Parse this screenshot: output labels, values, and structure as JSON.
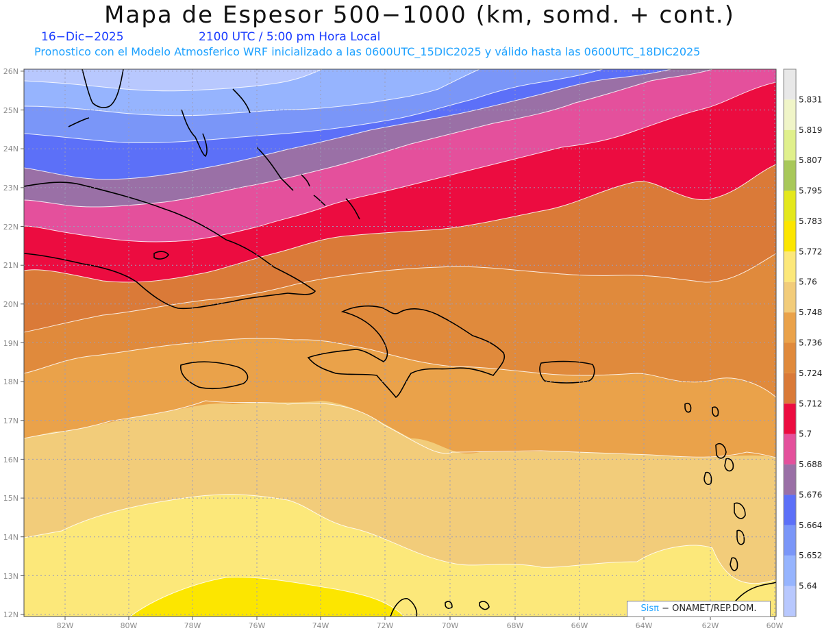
{
  "header": {
    "title": "Mapa de Espesor 500−1000 (km, somd. + cont.)",
    "date": "16−Dic−2025",
    "time": "2100 UTC / 5:00 pm Hora Local",
    "subtitle": "Pronostico con el Modelo Atmosferico WRF inicializado a las 0600UTC_15DIC2025 y válido hasta las  0600UTC_18DIC2025"
  },
  "map": {
    "lat_labels": [
      "26N",
      "25N",
      "24N",
      "23N",
      "22N",
      "21N",
      "20N",
      "19N",
      "18N",
      "17N",
      "16N",
      "15N",
      "14N",
      "13N",
      "12N"
    ],
    "lon_labels": [
      "82W",
      "80W",
      "78W",
      "76W",
      "74W",
      "72W",
      "70W",
      "68W",
      "66W",
      "64W",
      "62W",
      "60W"
    ],
    "lat_range": [
      12,
      26
    ],
    "lon_range": [
      -83.2,
      -60
    ],
    "grid": true
  },
  "colorbar": {
    "levels": [
      "5.831",
      "5.819",
      "5.807",
      "5.795",
      "5.783",
      "5.772",
      "5.76",
      "5.748",
      "5.736",
      "5.724",
      "5.712",
      "5.7",
      "5.688",
      "5.676",
      "5.664",
      "5.652",
      "5.64"
    ],
    "colors": [
      "#e8e8e8",
      "#f0f5c8",
      "#e0f08c",
      "#a8c85a",
      "#e4e81c",
      "#fce600",
      "#fce87a",
      "#f2cc7a",
      "#eaa24a",
      "#e08a3c",
      "#da7a38",
      "#ec0c40",
      "#e4509c",
      "#9a70a6",
      "#5c70f8",
      "#7a96f8",
      "#96b4fe",
      "#b8c8fe"
    ]
  },
  "credit": {
    "brand": "Sisπ",
    "text": "− ONAMET/REP.DOM."
  }
}
